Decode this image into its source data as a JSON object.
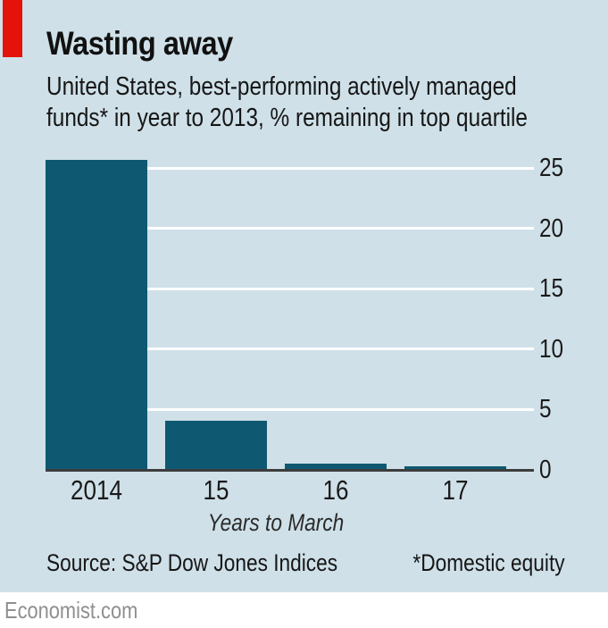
{
  "header": {
    "title": "Wasting away",
    "subtitle_line1": "United States, best-performing actively managed",
    "subtitle_line2": "funds* in year to 2013, % remaining in top quartile"
  },
  "chart_data": {
    "type": "bar",
    "title": "Wasting away",
    "subtitle": "United States, best-performing actively managed funds* in year to 2013, % remaining in top quartile",
    "categories": [
      "2014",
      "15",
      "16",
      "17"
    ],
    "values": [
      25.7,
      4.1,
      0.5,
      0.3
    ],
    "xlabel": "Years to March",
    "ylabel": "% remaining in top quartile",
    "ylim": [
      0,
      27
    ],
    "yticks": [
      0,
      5,
      10,
      15,
      20,
      25
    ],
    "tick_side": "right",
    "grid": "horizontal-white-on-blue",
    "bar_color": "#0e5971",
    "background_color": "#cfe0e8",
    "accent_color": "#e3120b"
  },
  "footer": {
    "source": "Source: S&P Dow Jones Indices",
    "footnote": "*Domestic equity",
    "brand": "Economist.com"
  }
}
